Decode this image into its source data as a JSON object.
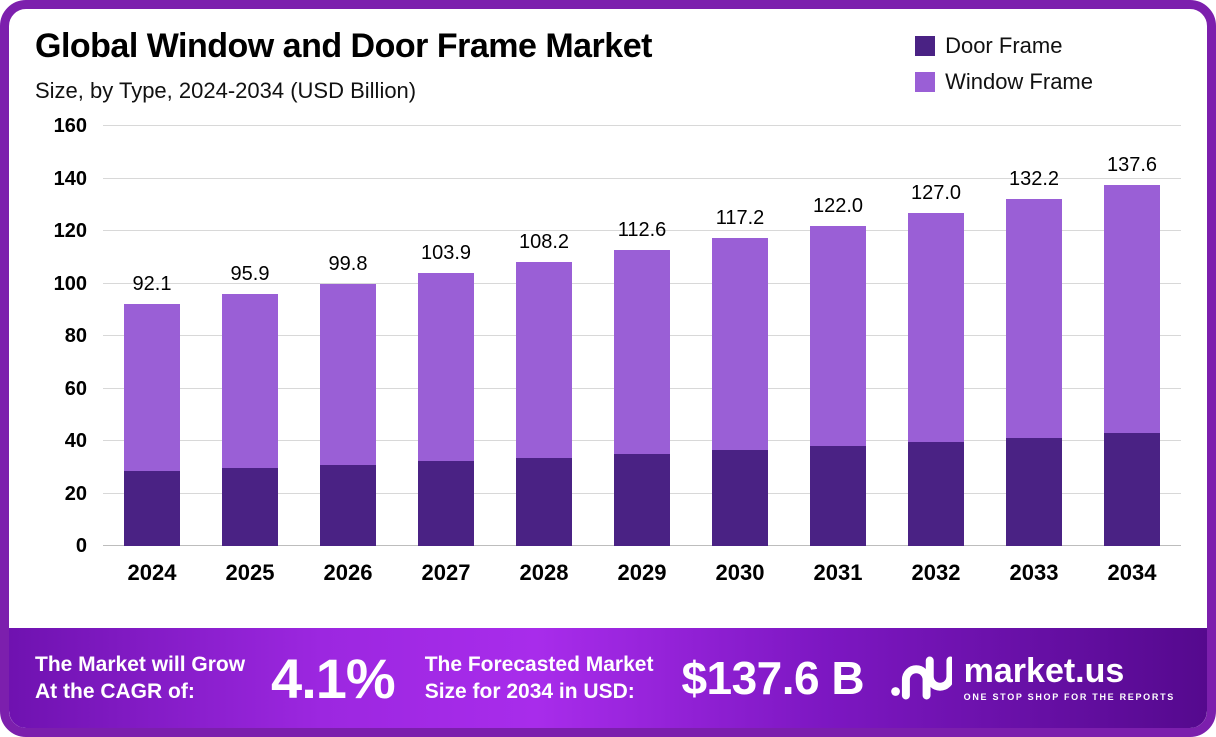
{
  "chart_data": {
    "type": "bar",
    "stacked": true,
    "title": "Global Window and Door Frame Market",
    "subtitle": "Size, by Type, 2024-2034 (USD Billion)",
    "categories": [
      "2024",
      "2025",
      "2026",
      "2027",
      "2028",
      "2029",
      "2030",
      "2031",
      "2032",
      "2033",
      "2034"
    ],
    "series": [
      {
        "name": "Door Frame",
        "color": "#4A2284",
        "values": [
          28.5,
          29.7,
          31.0,
          32.3,
          33.6,
          35.0,
          36.5,
          38.0,
          39.6,
          41.2,
          42.9
        ]
      },
      {
        "name": "Window Frame",
        "color": "#9A5FD6",
        "values": [
          63.6,
          66.2,
          68.8,
          71.6,
          74.6,
          77.6,
          80.7,
          84.0,
          87.4,
          91.0,
          94.7
        ]
      }
    ],
    "totals": [
      92.1,
      95.9,
      99.8,
      103.9,
      108.2,
      112.6,
      117.2,
      122.0,
      127.0,
      132.2,
      137.6
    ],
    "total_labels": [
      "92.1",
      "95.9",
      "99.8",
      "103.9",
      "108.2",
      "112.6",
      "117.2",
      "122.0",
      "127.0",
      "132.2",
      "137.6"
    ],
    "ylim": [
      0,
      160
    ],
    "ytick_step": 20,
    "grid": true,
    "legend_position": "top-right"
  },
  "banner": {
    "cagr_label_line1": "The Market will Grow",
    "cagr_label_line2": "At the CAGR of:",
    "cagr_value": "4.1%",
    "forecast_label_line1": "The Forecasted Market",
    "forecast_label_line2": "Size for 2034 in USD:",
    "forecast_value": "$137.6 B",
    "brand_name": "market.us",
    "brand_tagline": "ONE STOP SHOP FOR THE REPORTS"
  },
  "colors": {
    "border": "#7C1FAD",
    "door_frame": "#4A2284",
    "window_frame": "#9A5FD6",
    "gridline": "#D8D8D8",
    "text": "#000000",
    "banner_text": "#FFFFFF"
  }
}
